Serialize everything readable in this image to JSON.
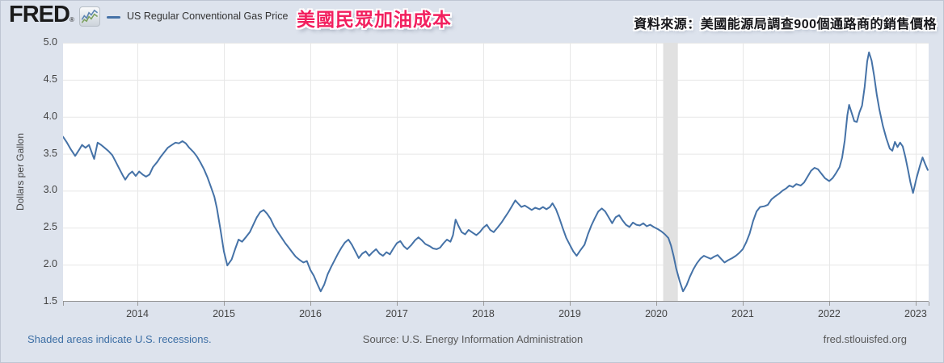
{
  "header": {
    "logo_text": "FRED",
    "registered_mark": "®",
    "legend_label": "US Regular Conventional Gas Price",
    "title_zh": "美國民眾加油成本",
    "source_note_zh": "資料來源：美國能源局調查900個通路商的銷售價格"
  },
  "footer": {
    "recession_note": "Shaded areas indicate U.S. recessions.",
    "source": "Source: U.S. Energy Information Administration",
    "site": "fred.stlouisfed.org"
  },
  "colors": {
    "background": "#dde3ed",
    "plot_background": "#ffffff",
    "grid": "#e7e7e7",
    "axis": "#8f8f8f",
    "tick_text": "#444444",
    "line": "#4572a7",
    "recession_band": "#e1e1e1",
    "title_pink": "#f2205f",
    "footer_link_blue": "#3d6fa5",
    "footer_gray": "#595959"
  },
  "chart_data": {
    "type": "line",
    "title": "US Regular Conventional Gas Price",
    "xlabel": "",
    "ylabel": "Dollars per Gallon",
    "ylim": [
      1.5,
      5.0
    ],
    "xlim": [
      2013.14,
      2023.15
    ],
    "x_ticks": [
      2014,
      2015,
      2016,
      2017,
      2018,
      2019,
      2020,
      2021,
      2022,
      2023
    ],
    "y_ticks": [
      5.0,
      4.5,
      4.0,
      3.5,
      3.0,
      2.5,
      2.0,
      1.5
    ],
    "grid": true,
    "legend_position": "top-left",
    "recession_bands": [
      {
        "start": 2020.08,
        "end": 2020.25
      }
    ],
    "series": [
      {
        "name": "US Regular Conventional Gas Price",
        "points": [
          [
            2013.14,
            3.73
          ],
          [
            2013.18,
            3.66
          ],
          [
            2013.23,
            3.56
          ],
          [
            2013.28,
            3.47
          ],
          [
            2013.33,
            3.56
          ],
          [
            2013.36,
            3.62
          ],
          [
            2013.4,
            3.58
          ],
          [
            2013.44,
            3.62
          ],
          [
            2013.48,
            3.49
          ],
          [
            2013.5,
            3.43
          ],
          [
            2013.54,
            3.65
          ],
          [
            2013.58,
            3.62
          ],
          [
            2013.62,
            3.58
          ],
          [
            2013.67,
            3.53
          ],
          [
            2013.71,
            3.48
          ],
          [
            2013.75,
            3.39
          ],
          [
            2013.79,
            3.3
          ],
          [
            2013.83,
            3.21
          ],
          [
            2013.86,
            3.15
          ],
          [
            2013.9,
            3.22
          ],
          [
            2013.94,
            3.26
          ],
          [
            2013.98,
            3.2
          ],
          [
            2014.02,
            3.26
          ],
          [
            2014.06,
            3.22
          ],
          [
            2014.1,
            3.19
          ],
          [
            2014.14,
            3.22
          ],
          [
            2014.18,
            3.32
          ],
          [
            2014.23,
            3.39
          ],
          [
            2014.27,
            3.46
          ],
          [
            2014.31,
            3.52
          ],
          [
            2014.35,
            3.58
          ],
          [
            2014.4,
            3.62
          ],
          [
            2014.44,
            3.65
          ],
          [
            2014.48,
            3.64
          ],
          [
            2014.52,
            3.67
          ],
          [
            2014.56,
            3.64
          ],
          [
            2014.6,
            3.58
          ],
          [
            2014.65,
            3.52
          ],
          [
            2014.69,
            3.46
          ],
          [
            2014.73,
            3.38
          ],
          [
            2014.77,
            3.29
          ],
          [
            2014.81,
            3.18
          ],
          [
            2014.85,
            3.05
          ],
          [
            2014.89,
            2.92
          ],
          [
            2014.92,
            2.76
          ],
          [
            2014.96,
            2.48
          ],
          [
            2015.0,
            2.18
          ],
          [
            2015.04,
            1.99
          ],
          [
            2015.09,
            2.07
          ],
          [
            2015.13,
            2.21
          ],
          [
            2015.17,
            2.34
          ],
          [
            2015.21,
            2.31
          ],
          [
            2015.26,
            2.38
          ],
          [
            2015.3,
            2.44
          ],
          [
            2015.34,
            2.54
          ],
          [
            2015.38,
            2.64
          ],
          [
            2015.42,
            2.71
          ],
          [
            2015.46,
            2.74
          ],
          [
            2015.5,
            2.69
          ],
          [
            2015.54,
            2.62
          ],
          [
            2015.58,
            2.52
          ],
          [
            2015.63,
            2.43
          ],
          [
            2015.67,
            2.36
          ],
          [
            2015.71,
            2.29
          ],
          [
            2015.75,
            2.23
          ],
          [
            2015.79,
            2.17
          ],
          [
            2015.83,
            2.11
          ],
          [
            2015.88,
            2.06
          ],
          [
            2015.92,
            2.03
          ],
          [
            2015.96,
            2.05
          ],
          [
            2016.0,
            1.93
          ],
          [
            2016.04,
            1.85
          ],
          [
            2016.08,
            1.74
          ],
          [
            2016.12,
            1.64
          ],
          [
            2016.16,
            1.73
          ],
          [
            2016.2,
            1.87
          ],
          [
            2016.24,
            1.97
          ],
          [
            2016.28,
            2.06
          ],
          [
            2016.32,
            2.15
          ],
          [
            2016.36,
            2.23
          ],
          [
            2016.4,
            2.3
          ],
          [
            2016.44,
            2.34
          ],
          [
            2016.48,
            2.27
          ],
          [
            2016.52,
            2.18
          ],
          [
            2016.56,
            2.09
          ],
          [
            2016.6,
            2.15
          ],
          [
            2016.64,
            2.18
          ],
          [
            2016.68,
            2.12
          ],
          [
            2016.72,
            2.17
          ],
          [
            2016.76,
            2.21
          ],
          [
            2016.8,
            2.15
          ],
          [
            2016.84,
            2.12
          ],
          [
            2016.88,
            2.17
          ],
          [
            2016.92,
            2.14
          ],
          [
            2016.96,
            2.22
          ],
          [
            2017.0,
            2.29
          ],
          [
            2017.04,
            2.32
          ],
          [
            2017.08,
            2.25
          ],
          [
            2017.12,
            2.21
          ],
          [
            2017.17,
            2.27
          ],
          [
            2017.21,
            2.33
          ],
          [
            2017.25,
            2.37
          ],
          [
            2017.29,
            2.33
          ],
          [
            2017.33,
            2.28
          ],
          [
            2017.38,
            2.25
          ],
          [
            2017.42,
            2.22
          ],
          [
            2017.46,
            2.21
          ],
          [
            2017.5,
            2.23
          ],
          [
            2017.54,
            2.29
          ],
          [
            2017.58,
            2.34
          ],
          [
            2017.62,
            2.31
          ],
          [
            2017.65,
            2.4
          ],
          [
            2017.68,
            2.61
          ],
          [
            2017.71,
            2.53
          ],
          [
            2017.75,
            2.44
          ],
          [
            2017.79,
            2.41
          ],
          [
            2017.83,
            2.47
          ],
          [
            2017.88,
            2.43
          ],
          [
            2017.92,
            2.4
          ],
          [
            2017.96,
            2.44
          ],
          [
            2018.0,
            2.5
          ],
          [
            2018.04,
            2.54
          ],
          [
            2018.08,
            2.47
          ],
          [
            2018.12,
            2.44
          ],
          [
            2018.17,
            2.51
          ],
          [
            2018.21,
            2.57
          ],
          [
            2018.25,
            2.64
          ],
          [
            2018.29,
            2.71
          ],
          [
            2018.33,
            2.79
          ],
          [
            2018.37,
            2.87
          ],
          [
            2018.4,
            2.83
          ],
          [
            2018.44,
            2.78
          ],
          [
            2018.48,
            2.8
          ],
          [
            2018.52,
            2.77
          ],
          [
            2018.56,
            2.74
          ],
          [
            2018.6,
            2.77
          ],
          [
            2018.65,
            2.75
          ],
          [
            2018.69,
            2.78
          ],
          [
            2018.73,
            2.75
          ],
          [
            2018.77,
            2.78
          ],
          [
            2018.8,
            2.83
          ],
          [
            2018.84,
            2.75
          ],
          [
            2018.88,
            2.63
          ],
          [
            2018.92,
            2.49
          ],
          [
            2018.96,
            2.36
          ],
          [
            2019.0,
            2.27
          ],
          [
            2019.04,
            2.18
          ],
          [
            2019.08,
            2.12
          ],
          [
            2019.12,
            2.19
          ],
          [
            2019.17,
            2.27
          ],
          [
            2019.21,
            2.41
          ],
          [
            2019.25,
            2.53
          ],
          [
            2019.29,
            2.63
          ],
          [
            2019.33,
            2.72
          ],
          [
            2019.37,
            2.76
          ],
          [
            2019.41,
            2.72
          ],
          [
            2019.45,
            2.64
          ],
          [
            2019.49,
            2.56
          ],
          [
            2019.53,
            2.64
          ],
          [
            2019.57,
            2.67
          ],
          [
            2019.61,
            2.6
          ],
          [
            2019.65,
            2.54
          ],
          [
            2019.69,
            2.51
          ],
          [
            2019.73,
            2.57
          ],
          [
            2019.77,
            2.54
          ],
          [
            2019.81,
            2.53
          ],
          [
            2019.85,
            2.56
          ],
          [
            2019.89,
            2.52
          ],
          [
            2019.93,
            2.54
          ],
          [
            2019.97,
            2.51
          ],
          [
            2020.02,
            2.48
          ],
          [
            2020.06,
            2.45
          ],
          [
            2020.1,
            2.41
          ],
          [
            2020.14,
            2.36
          ],
          [
            2020.17,
            2.26
          ],
          [
            2020.2,
            2.12
          ],
          [
            2020.23,
            1.95
          ],
          [
            2020.27,
            1.78
          ],
          [
            2020.31,
            1.64
          ],
          [
            2020.35,
            1.72
          ],
          [
            2020.39,
            1.84
          ],
          [
            2020.43,
            1.94
          ],
          [
            2020.47,
            2.02
          ],
          [
            2020.51,
            2.08
          ],
          [
            2020.55,
            2.12
          ],
          [
            2020.59,
            2.1
          ],
          [
            2020.63,
            2.08
          ],
          [
            2020.67,
            2.11
          ],
          [
            2020.71,
            2.13
          ],
          [
            2020.75,
            2.08
          ],
          [
            2020.79,
            2.03
          ],
          [
            2020.83,
            2.06
          ],
          [
            2020.88,
            2.09
          ],
          [
            2020.92,
            2.12
          ],
          [
            2020.96,
            2.16
          ],
          [
            2021.0,
            2.21
          ],
          [
            2021.04,
            2.3
          ],
          [
            2021.08,
            2.42
          ],
          [
            2021.12,
            2.59
          ],
          [
            2021.16,
            2.72
          ],
          [
            2021.2,
            2.78
          ],
          [
            2021.25,
            2.79
          ],
          [
            2021.29,
            2.81
          ],
          [
            2021.33,
            2.88
          ],
          [
            2021.37,
            2.92
          ],
          [
            2021.42,
            2.96
          ],
          [
            2021.46,
            3.0
          ],
          [
            2021.5,
            3.03
          ],
          [
            2021.54,
            3.07
          ],
          [
            2021.58,
            3.05
          ],
          [
            2021.62,
            3.09
          ],
          [
            2021.67,
            3.07
          ],
          [
            2021.71,
            3.11
          ],
          [
            2021.75,
            3.19
          ],
          [
            2021.79,
            3.27
          ],
          [
            2021.83,
            3.31
          ],
          [
            2021.87,
            3.29
          ],
          [
            2021.91,
            3.23
          ],
          [
            2021.95,
            3.17
          ],
          [
            2022.0,
            3.13
          ],
          [
            2022.04,
            3.17
          ],
          [
            2022.08,
            3.24
          ],
          [
            2022.12,
            3.32
          ],
          [
            2022.15,
            3.45
          ],
          [
            2022.18,
            3.68
          ],
          [
            2022.21,
            4.02
          ],
          [
            2022.23,
            4.16
          ],
          [
            2022.26,
            4.05
          ],
          [
            2022.29,
            3.94
          ],
          [
            2022.32,
            3.93
          ],
          [
            2022.35,
            4.06
          ],
          [
            2022.38,
            4.15
          ],
          [
            2022.41,
            4.4
          ],
          [
            2022.44,
            4.75
          ],
          [
            2022.46,
            4.87
          ],
          [
            2022.49,
            4.76
          ],
          [
            2022.52,
            4.55
          ],
          [
            2022.55,
            4.3
          ],
          [
            2022.58,
            4.1
          ],
          [
            2022.62,
            3.88
          ],
          [
            2022.66,
            3.71
          ],
          [
            2022.7,
            3.57
          ],
          [
            2022.73,
            3.54
          ],
          [
            2022.76,
            3.66
          ],
          [
            2022.79,
            3.59
          ],
          [
            2022.82,
            3.65
          ],
          [
            2022.85,
            3.6
          ],
          [
            2022.88,
            3.46
          ],
          [
            2022.91,
            3.29
          ],
          [
            2022.94,
            3.11
          ],
          [
            2022.97,
            2.97
          ],
          [
            2023.01,
            3.17
          ],
          [
            2023.05,
            3.34
          ],
          [
            2023.08,
            3.45
          ],
          [
            2023.11,
            3.36
          ],
          [
            2023.14,
            3.28
          ]
        ]
      }
    ]
  }
}
